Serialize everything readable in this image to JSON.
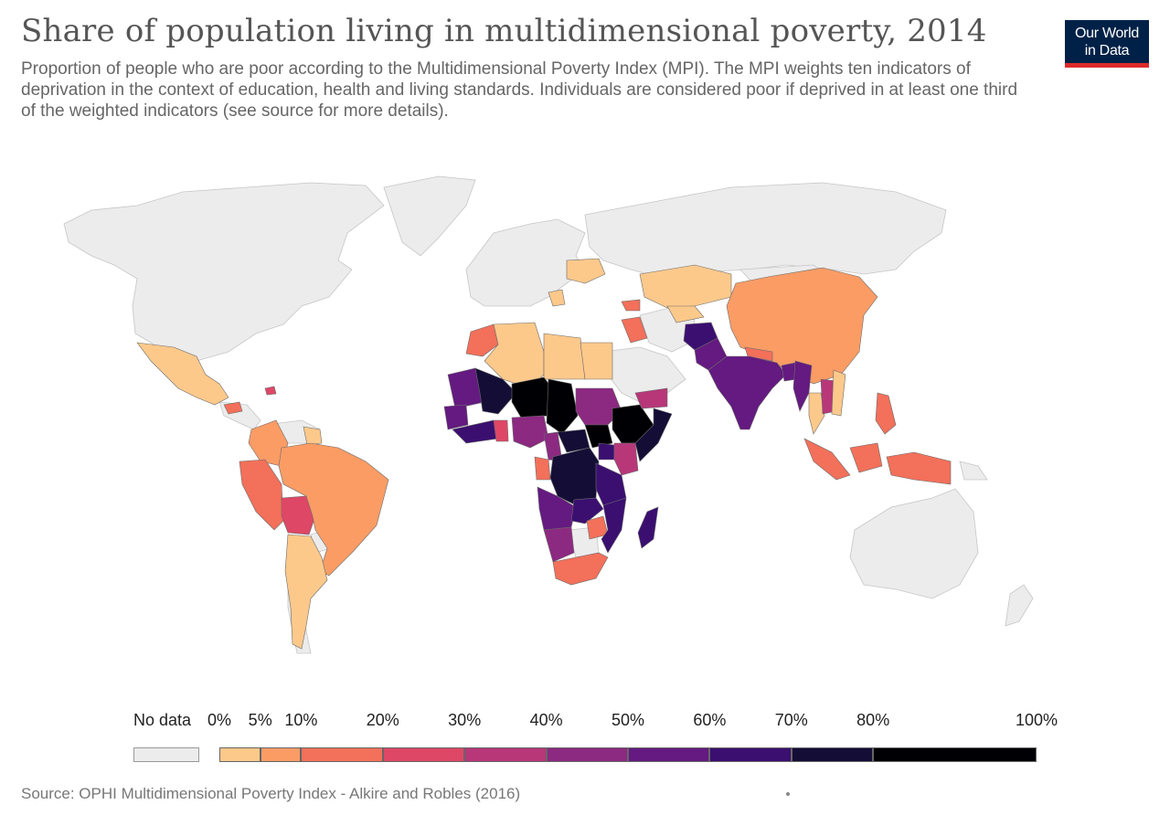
{
  "header": {
    "title": "Share of population living in multidimensional poverty, 2014",
    "subtitle": "Proportion of people who are poor according to the Multidimensional Poverty Index (MPI). The MPI weights ten indicators of deprivation in the context of education, health and living standards. Individuals are considered poor if deprived in at least one third of the weighted indicators (see source for more details).",
    "logo_line1": "Our World",
    "logo_line2": "in Data"
  },
  "colors": {
    "nodata": "#ececec",
    "border": "#8a8a8a",
    "logo_bg": "#002147",
    "logo_stripe": "#dd2a2a"
  },
  "legend": {
    "nodata_label": "No data",
    "ticks": [
      "0%",
      "5%",
      "10%",
      "20%",
      "30%",
      "40%",
      "50%",
      "60%",
      "70%",
      "80%",
      "100%"
    ],
    "bins": [
      {
        "from": 0,
        "to": 5,
        "color": "#fdc98b"
      },
      {
        "from": 5,
        "to": 10,
        "color": "#fb9c65"
      },
      {
        "from": 10,
        "to": 20,
        "color": "#f3705a"
      },
      {
        "from": 20,
        "to": 30,
        "color": "#de4766"
      },
      {
        "from": 30,
        "to": 40,
        "color": "#b73779"
      },
      {
        "from": 40,
        "to": 50,
        "color": "#8c2981"
      },
      {
        "from": 50,
        "to": 60,
        "color": "#641a80"
      },
      {
        "from": 60,
        "to": 70,
        "color": "#3b0f70"
      },
      {
        "from": 70,
        "to": 80,
        "color": "#140e36"
      },
      {
        "from": 80,
        "to": 100,
        "color": "#000004"
      }
    ]
  },
  "chart_data": {
    "type": "choropleth",
    "value_unit": "% of population",
    "regions": [
      {
        "name": "Mexico",
        "bin": 1
      },
      {
        "name": "Colombia",
        "bin": 2
      },
      {
        "name": "Peru",
        "bin": 3
      },
      {
        "name": "Bolivia",
        "bin": 4
      },
      {
        "name": "Brazil",
        "bin": 2
      },
      {
        "name": "Argentina",
        "bin": 1
      },
      {
        "name": "Guyana",
        "bin": 1
      },
      {
        "name": "Honduras",
        "bin": 3
      },
      {
        "name": "Haiti",
        "bin": 4
      },
      {
        "name": "Morocco",
        "bin": 3
      },
      {
        "name": "Algeria",
        "bin": 1
      },
      {
        "name": "Libya",
        "bin": 1
      },
      {
        "name": "Egypt",
        "bin": 1
      },
      {
        "name": "Mauritania",
        "bin": 7
      },
      {
        "name": "Mali",
        "bin": 9
      },
      {
        "name": "Niger",
        "bin": 10
      },
      {
        "name": "Chad",
        "bin": 10
      },
      {
        "name": "Sudan",
        "bin": 6
      },
      {
        "name": "South Sudan",
        "bin": 10
      },
      {
        "name": "Ethiopia",
        "bin": 10
      },
      {
        "name": "Somalia",
        "bin": 9
      },
      {
        "name": "Nigeria",
        "bin": 6
      },
      {
        "name": "Senegal",
        "bin": 7
      },
      {
        "name": "Ghana",
        "bin": 4
      },
      {
        "name": "Cameroon",
        "bin": 6
      },
      {
        "name": "Central African Republic",
        "bin": 9
      },
      {
        "name": "Gabon",
        "bin": 3
      },
      {
        "name": "DR Congo",
        "bin": 9
      },
      {
        "name": "Uganda",
        "bin": 7
      },
      {
        "name": "Kenya",
        "bin": 5
      },
      {
        "name": "Tanzania",
        "bin": 8
      },
      {
        "name": "Angola",
        "bin": 6
      },
      {
        "name": "Zambia",
        "bin": 7
      },
      {
        "name": "Mozambique",
        "bin": 8
      },
      {
        "name": "Madagascar",
        "bin": 8
      },
      {
        "name": "Zimbabwe",
        "bin": 3
      },
      {
        "name": "Namibia",
        "bin": 5
      },
      {
        "name": "South Africa",
        "bin": 3
      },
      {
        "name": "Yemen",
        "bin": 5
      },
      {
        "name": "Iraq",
        "bin": 3
      },
      {
        "name": "Afghanistan",
        "bin": 8
      },
      {
        "name": "Pakistan",
        "bin": 6
      },
      {
        "name": "India",
        "bin": 7
      },
      {
        "name": "Nepal",
        "bin": 3
      },
      {
        "name": "Bangladesh",
        "bin": 7
      },
      {
        "name": "Myanmar",
        "bin": 7
      },
      {
        "name": "Kazakhstan",
        "bin": 1
      },
      {
        "name": "China",
        "bin": 2
      },
      {
        "name": "Thailand",
        "bin": 1
      },
      {
        "name": "Cambodia",
        "bin": 6
      },
      {
        "name": "Laos",
        "bin": 5
      },
      {
        "name": "Vietnam",
        "bin": 1
      },
      {
        "name": "Philippines",
        "bin": 3
      },
      {
        "name": "Indonesia",
        "bin": 3
      },
      {
        "name": "Ukraine",
        "bin": 1
      }
    ]
  },
  "footer": {
    "source": "Source: OPHI Multidimensional Poverty Index - Alkire and Robles (2016)"
  }
}
